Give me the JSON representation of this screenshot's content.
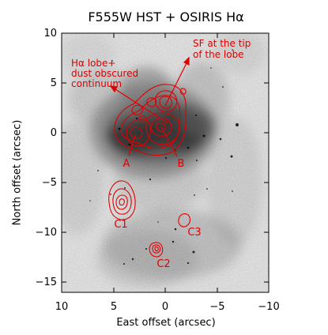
{
  "figure": {
    "title": "F555W HST + OSIRIS Hα",
    "xlabel": "East offset (arcsec)",
    "ylabel": "North offset (arcsec)"
  },
  "axes": {
    "x_range": [
      10,
      -10
    ],
    "y_range": [
      -16,
      10
    ],
    "x_ticks": [
      "10",
      "5",
      "0",
      "−5",
      "−10"
    ],
    "y_ticks": [
      "10",
      "5",
      "0",
      "−5",
      "−10",
      "−15"
    ],
    "contour_color": "#e00000"
  },
  "annotations": {
    "halpha_lobe_line1": "Hα lobe+",
    "halpha_lobe_line2": "dust obscured",
    "halpha_lobe_line3": "continuum",
    "sf_tip_line1": "SF at the tip",
    "sf_tip_line2": "of the lobe"
  },
  "sources": {
    "A": "A",
    "B": "B",
    "C1": "C1",
    "C2": "C2",
    "C3": "C3"
  }
}
